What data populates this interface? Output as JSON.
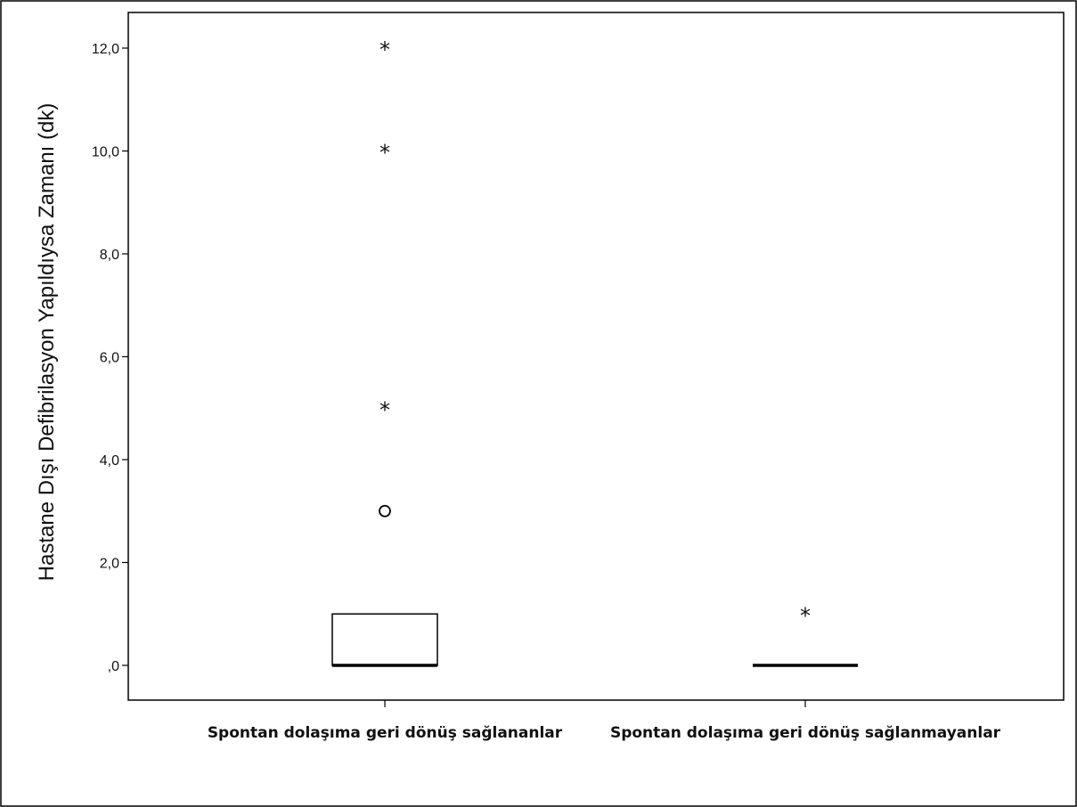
{
  "chart_data": {
    "type": "box",
    "ylabel": "Hastane Dışı  Defibrilasyon Yapıldıysa Zamanı  (dk)",
    "xlabel": "",
    "ylim": [
      -0.7,
      13.0
    ],
    "yticks": [
      0,
      2,
      4,
      6,
      8,
      10,
      12
    ],
    "ytick_labels": [
      ",0",
      "2,0",
      "4,0",
      "6,0",
      "8,0",
      "10,0",
      "12,0"
    ],
    "grid": false,
    "categories": [
      "Spontan dolaşıma geri dönüş sağlananlar",
      "Spontan dolaşıma geri dönüş sağlanmayanlar"
    ],
    "boxes": [
      {
        "category": "Spontan dolaşıma geri dönüş sağlananlar",
        "min": 0,
        "q1": 0,
        "median": 0,
        "q3": 1,
        "max": 1,
        "outliers": [
          {
            "value": 3,
            "marker": "circle"
          },
          {
            "value": 5,
            "marker": "star"
          },
          {
            "value": 10,
            "marker": "star"
          },
          {
            "value": 12,
            "marker": "star"
          }
        ]
      },
      {
        "category": "Spontan dolaşıma geri dönüş sağlanmayanlar",
        "min": 0,
        "q1": 0,
        "median": 0,
        "q3": 0,
        "max": 0,
        "outliers": [
          {
            "value": 1,
            "marker": "star"
          }
        ]
      }
    ]
  }
}
